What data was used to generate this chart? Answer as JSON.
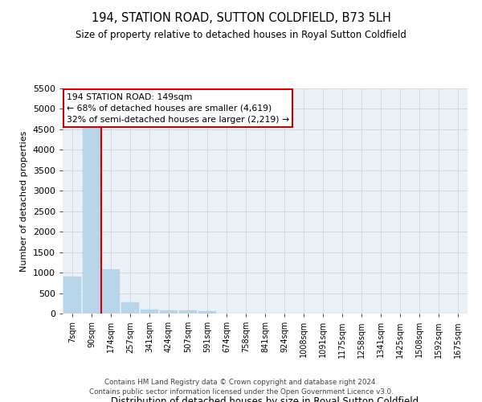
{
  "title": "194, STATION ROAD, SUTTON COLDFIELD, B73 5LH",
  "subtitle": "Size of property relative to detached houses in Royal Sutton Coldfield",
  "xlabel": "Distribution of detached houses by size in Royal Sutton Coldfield",
  "ylabel": "Number of detached properties",
  "footer1": "Contains HM Land Registry data © Crown copyright and database right 2024.",
  "footer2": "Contains public sector information licensed under the Open Government Licence v3.0.",
  "categories": [
    "7sqm",
    "90sqm",
    "174sqm",
    "257sqm",
    "341sqm",
    "424sqm",
    "507sqm",
    "591sqm",
    "674sqm",
    "758sqm",
    "841sqm",
    "924sqm",
    "1008sqm",
    "1091sqm",
    "1175sqm",
    "1258sqm",
    "1341sqm",
    "1425sqm",
    "1508sqm",
    "1592sqm",
    "1675sqm"
  ],
  "values": [
    900,
    4619,
    1075,
    280,
    90,
    80,
    80,
    50,
    0,
    0,
    0,
    0,
    0,
    0,
    0,
    0,
    0,
    0,
    0,
    0,
    0
  ],
  "bar_color": "#b8d4e8",
  "bar_edgecolor": "#b8d4e8",
  "grid_color": "#d0d8e0",
  "vline_x": 1.5,
  "vline_color": "#cc0000",
  "annotation_text": "194 STATION ROAD: 149sqm\n← 68% of detached houses are smaller (4,619)\n32% of semi-detached houses are larger (2,219) →",
  "annotation_box_color": "#cc0000",
  "ylim": [
    0,
    5500
  ],
  "yticks": [
    0,
    500,
    1000,
    1500,
    2000,
    2500,
    3000,
    3500,
    4000,
    4500,
    5000,
    5500
  ],
  "background_color": "#ffffff",
  "plot_background": "#eaf0f6"
}
